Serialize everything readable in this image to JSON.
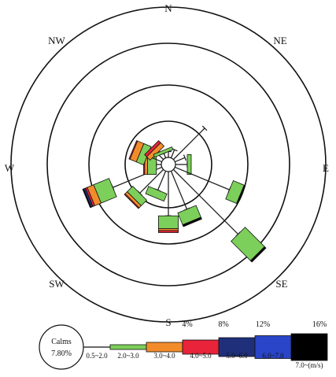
{
  "chart_data": {
    "type": "wind-rose",
    "directions": [
      "N",
      "NNE",
      "NE",
      "ENE",
      "E",
      "ESE",
      "SE",
      "SSE",
      "S",
      "SSW",
      "SW",
      "WSW",
      "W",
      "WNW",
      "NW",
      "NNW"
    ],
    "direction_labels": [
      {
        "key": "N",
        "text": "N"
      },
      {
        "key": "NE",
        "text": "NE"
      },
      {
        "key": "E",
        "text": "E"
      },
      {
        "key": "SE",
        "text": "SE"
      },
      {
        "key": "S",
        "text": "S"
      },
      {
        "key": "SW",
        "text": "SW"
      },
      {
        "key": "W",
        "text": "W"
      },
      {
        "key": "NW",
        "text": "NW"
      }
    ],
    "radial_unit": "%",
    "rings": [
      4,
      8,
      12,
      16
    ],
    "ring_labels": [
      "4%",
      "8%",
      "12%",
      "16%"
    ],
    "calms": {
      "label": "Calms",
      "value_text": "7.80%",
      "value": 7.8
    },
    "speed_bins": [
      {
        "label": "0.5~2.0",
        "color": "#222222"
      },
      {
        "label": "2.0~3.0",
        "color": "#7ccf5a"
      },
      {
        "label": "3.0~4.0",
        "color": "#f28c2b"
      },
      {
        "label": "4.0~5.0",
        "color": "#e8233a"
      },
      {
        "label": "5.0~6.0",
        "color": "#1f2f7a"
      },
      {
        "label": "6.0~7.0",
        "color": "#2a45c8"
      },
      {
        "label": "7.0~(m/s)",
        "color": "#000000"
      }
    ],
    "series": [
      {
        "direction": "N",
        "values": [
          0.6,
          0,
          0,
          0,
          0,
          0,
          0
        ]
      },
      {
        "direction": "NNE",
        "values": [
          0.9,
          0,
          0,
          0,
          0,
          0,
          0
        ]
      },
      {
        "direction": "NE",
        "values": [
          4.5,
          0,
          0,
          0,
          0,
          0,
          0
        ]
      },
      {
        "direction": "ENE",
        "values": [
          1.1,
          0,
          0,
          0,
          0,
          0,
          0
        ]
      },
      {
        "direction": "E",
        "values": [
          1.2,
          0.4,
          0,
          0,
          0,
          0,
          0
        ]
      },
      {
        "direction": "ESE",
        "values": [
          6.0,
          1.2,
          0,
          0,
          0,
          0,
          0.1
        ]
      },
      {
        "direction": "SE",
        "values": [
          9.3,
          2.8,
          0,
          0,
          0,
          0,
          0.2
        ]
      },
      {
        "direction": "SSE",
        "values": [
          4.2,
          1.3,
          0,
          0,
          0,
          0,
          0.2
        ]
      },
      {
        "direction": "S",
        "values": [
          4.5,
          1.3,
          0.2,
          0.2,
          0,
          0,
          0
        ]
      },
      {
        "direction": "SSW",
        "values": [
          2.1,
          0.8,
          0,
          0,
          0,
          0,
          0
        ]
      },
      {
        "direction": "SW",
        "values": [
          3.4,
          0.8,
          0.3,
          0.1,
          0,
          0,
          0
        ]
      },
      {
        "direction": "WSW",
        "values": [
          5.4,
          1.7,
          0.7,
          0.2,
          0.2,
          0,
          0.1
        ]
      },
      {
        "direction": "W",
        "values": [
          0.5,
          0.9,
          0.3,
          0.1,
          0,
          0,
          0
        ]
      },
      {
        "direction": "WNW",
        "values": [
          1.6,
          0.8,
          0.7,
          0.1,
          0,
          0,
          0
        ]
      },
      {
        "direction": "NW",
        "values": [
          0.9,
          0,
          0.5,
          0.3,
          0,
          0,
          0
        ]
      },
      {
        "direction": "NNW",
        "values": [
          0.5,
          0.3,
          0,
          0,
          0,
          0,
          0
        ]
      }
    ]
  }
}
